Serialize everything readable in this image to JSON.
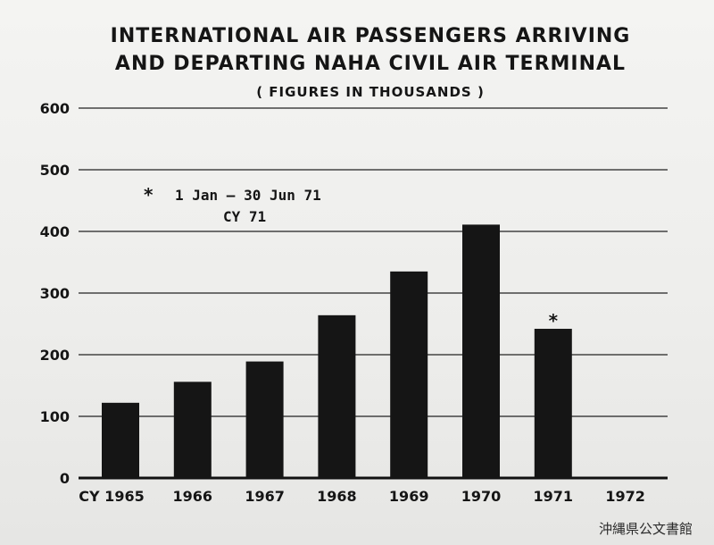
{
  "chart_data": {
    "type": "bar",
    "title_lines": [
      "INTERNATIONAL AIR PASSENGERS ARRIVING",
      "AND DEPARTING NAHA CIVIL AIR TERMINAL"
    ],
    "subtitle": "( FIGURES IN THOUSANDS )",
    "categories": [
      "CY 1965",
      "1966",
      "1967",
      "1968",
      "1969",
      "1970",
      "1971",
      "1972"
    ],
    "values": [
      122,
      156,
      189,
      264,
      335,
      411,
      242,
      null
    ],
    "ylim": [
      0,
      600
    ],
    "yticks": [
      0,
      100,
      200,
      300,
      400,
      500,
      600
    ],
    "grid": true,
    "annotation": {
      "symbol": "*",
      "line1": "1 Jan — 30 Jun 71",
      "line2": "CY 71",
      "marked_category": "1971"
    }
  },
  "watermark": "沖縄県公文書館",
  "colors": {
    "bar": "#151515",
    "background": "#f2f2f0"
  }
}
